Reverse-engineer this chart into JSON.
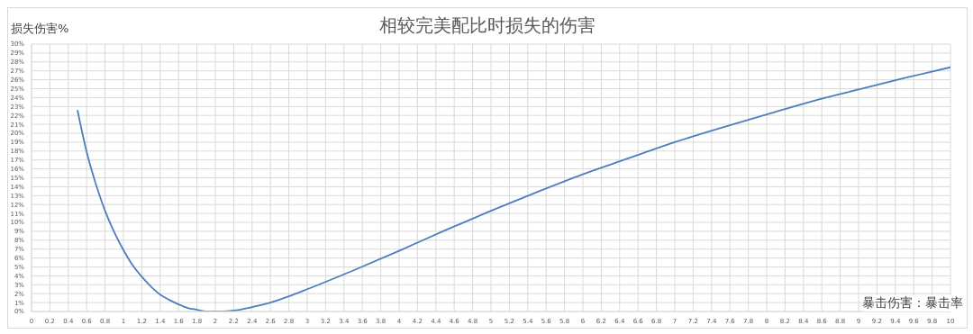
{
  "chart_data": {
    "type": "line",
    "title": "相较完美配比时损失的伤害",
    "ylabel": "损失伤害%",
    "xlabel": "暴击伤害：暴击率",
    "x": [
      0.5,
      0.6,
      0.7,
      0.8,
      0.9,
      1,
      1.1,
      1.2,
      1.3,
      1.4,
      1.5,
      1.6,
      1.7,
      1.8,
      1.9,
      2,
      2.2,
      2.4,
      2.6,
      2.8,
      3,
      3.5,
      4,
      4.5,
      5,
      5.5,
      6,
      6.5,
      7,
      7.5,
      8,
      8.5,
      9,
      9.5,
      10
    ],
    "series": [
      {
        "color": "#4f7dbf",
        "values": [
          22.6,
          17.9,
          14.3,
          11.3,
          8.9,
          6.9,
          5.2,
          3.9,
          2.8,
          1.9,
          1.3,
          0.8,
          0.4,
          0.2,
          0.0,
          0,
          0.1,
          0.5,
          1.0,
          1.7,
          2.5,
          4.6,
          6.8,
          9.1,
          11.3,
          13.4,
          15.4,
          17.2,
          19.0,
          20.6,
          22.1,
          23.6,
          24.9,
          26.2,
          27.4
        ]
      }
    ],
    "xlim": [
      0,
      10
    ],
    "xticks": [
      0,
      0.2,
      0.4,
      0.6,
      0.8,
      1,
      1.2,
      1.4,
      1.6,
      1.8,
      2,
      2.2,
      2.4,
      2.6,
      2.8,
      3,
      3.2,
      3.4,
      3.6,
      3.8,
      4,
      4.2,
      4.4,
      4.6,
      4.8,
      5,
      5.2,
      5.4,
      5.6,
      5.8,
      6,
      6.2,
      6.4,
      6.6,
      6.8,
      7,
      7.2,
      7.4,
      7.6,
      7.8,
      8,
      8.2,
      8.4,
      8.6,
      8.8,
      9,
      9.2,
      9.4,
      9.6,
      9.8,
      10
    ],
    "ylim": [
      0,
      30
    ],
    "yticks": [
      {
        "value": 0,
        "label": "0%"
      },
      {
        "value": 1,
        "label": "1%"
      },
      {
        "value": 2,
        "label": "2%"
      },
      {
        "value": 3,
        "label": "3%"
      },
      {
        "value": 4,
        "label": "4%"
      },
      {
        "value": 5,
        "label": "5%"
      },
      {
        "value": 6,
        "label": "6%"
      },
      {
        "value": 7,
        "label": "7%"
      },
      {
        "value": 8,
        "label": "8%"
      },
      {
        "value": 9,
        "label": "9%"
      },
      {
        "value": 10,
        "label": "10%"
      },
      {
        "value": 11,
        "label": "11%"
      },
      {
        "value": 12,
        "label": "12%"
      },
      {
        "value": 13,
        "label": "13%"
      },
      {
        "value": 14,
        "label": "14%"
      },
      {
        "value": 15,
        "label": "15%"
      },
      {
        "value": 16,
        "label": "16%"
      },
      {
        "value": 17,
        "label": "17%"
      },
      {
        "value": 18,
        "label": "18%"
      },
      {
        "value": 19,
        "label": "19%"
      },
      {
        "value": 20,
        "label": "20%"
      },
      {
        "value": 21,
        "label": "21%"
      },
      {
        "value": 22,
        "label": "22%"
      },
      {
        "value": 23,
        "label": "23%"
      },
      {
        "value": 24,
        "label": "24%"
      },
      {
        "value": 25,
        "label": "25%"
      },
      {
        "value": 26,
        "label": "26%"
      },
      {
        "value": 27,
        "label": "27%"
      },
      {
        "value": 28,
        "label": "28%"
      },
      {
        "value": 29,
        "label": "29%"
      },
      {
        "value": 30,
        "label": "30%"
      }
    ],
    "grid": true,
    "marker": "none",
    "line_style": "solid"
  }
}
